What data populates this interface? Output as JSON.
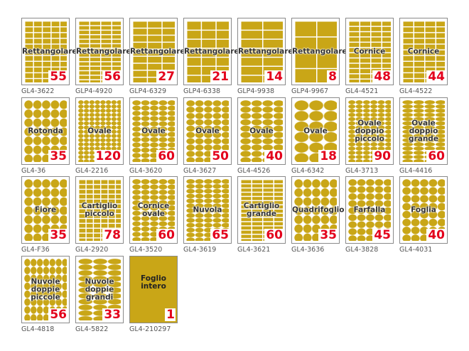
{
  "items": [
    {
      "name": [
        "Rettangolare"
      ],
      "count": 55,
      "code": "GL4-3622"
    },
    {
      "name": [
        "Rettangolare"
      ],
      "count": 56,
      "code": "GLP4-4920"
    },
    {
      "name": [
        "Rettangolare"
      ],
      "count": 27,
      "code": "GLP4-6329"
    },
    {
      "name": [
        "Rettangolare"
      ],
      "count": 21,
      "code": "GLP4-6338"
    },
    {
      "name": [
        "Rettangolare"
      ],
      "count": 14,
      "code": "GLP4-9938"
    },
    {
      "name": [
        "Rettangolare"
      ],
      "count": 8,
      "code": "GLP4-9967"
    },
    {
      "name": [
        "Cornice"
      ],
      "count": 48,
      "code": "GL4-4521"
    },
    {
      "name": [
        "Cornice"
      ],
      "count": 44,
      "code": "GL4-4522"
    },
    {
      "name": [
        "Rotonda"
      ],
      "count": 35,
      "code": "GL4-36"
    },
    {
      "name": [
        "Ovale"
      ],
      "count": 120,
      "code": "GL4-2216"
    },
    {
      "name": [
        "Ovale"
      ],
      "count": 60,
      "code": "GL4-3620"
    },
    {
      "name": [
        "Ovale"
      ],
      "count": 50,
      "code": "GL4-3627"
    },
    {
      "name": [
        "Ovale"
      ],
      "count": 40,
      "code": "GL4-4526"
    },
    {
      "name": [
        "Ovale"
      ],
      "count": 18,
      "code": "GL4-6342"
    },
    {
      "name": [
        "Ovale",
        "doppio",
        "piccolo"
      ],
      "count": 90,
      "code": "GL4-3713"
    },
    {
      "name": [
        "Ovale",
        "doppio",
        "grande"
      ],
      "count": 60,
      "code": "GL4-4416"
    },
    {
      "name": [
        "Fiore"
      ],
      "count": 35,
      "code": "GL4-F36"
    },
    {
      "name": [
        "Cartiglio",
        "piccolo"
      ],
      "count": 78,
      "code": "GL4-2920"
    },
    {
      "name": [
        "Cornice",
        "ovale"
      ],
      "count": 60,
      "code": "GL4-3520"
    },
    {
      "name": [
        "Nuvola"
      ],
      "count": 65,
      "code": "GL4-3619"
    },
    {
      "name": [
        "Cartiglio",
        "grande"
      ],
      "count": 60,
      "code": "GL4-3621"
    },
    {
      "name": [
        "Quadrifoglio"
      ],
      "count": 35,
      "code": "GL4-3636"
    },
    {
      "name": [
        "Farfalla"
      ],
      "count": 45,
      "code": "GL4-3828"
    },
    {
      "name": [
        "Foglia"
      ],
      "count": 40,
      "code": "GL4-4031"
    },
    {
      "name": [
        "Nuvole",
        "doppie",
        "piccole"
      ],
      "count": 56,
      "code": "GL4-4818"
    },
    {
      "name": [
        "Nuvole",
        "doppie",
        "grandi"
      ],
      "count": 33,
      "code": "GL4-5822"
    },
    {
      "name": [
        "Foglio",
        "intero"
      ],
      "count": 1,
      "code": "GL4-210297"
    }
  ]
}
